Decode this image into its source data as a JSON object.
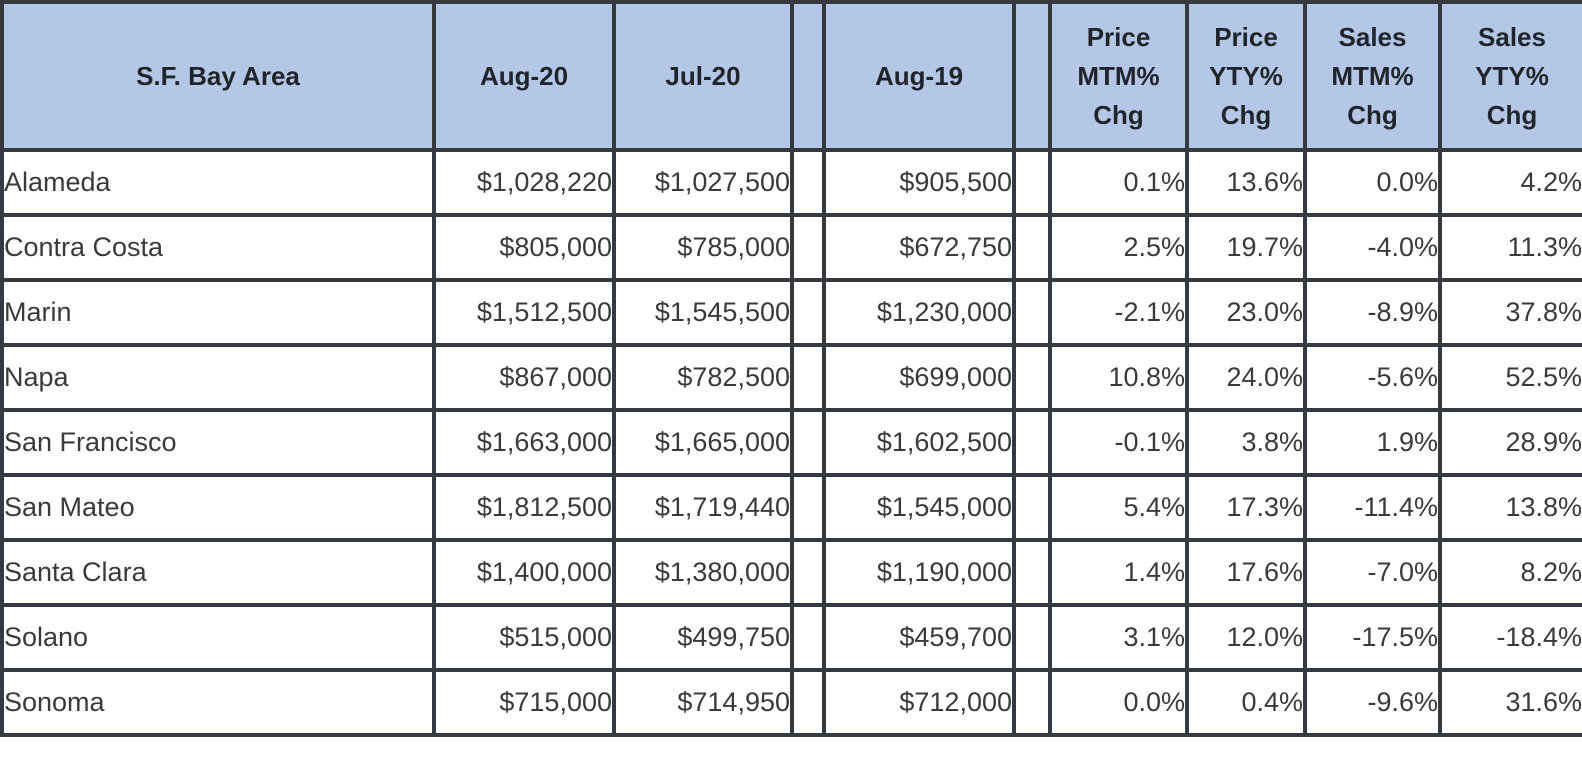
{
  "colors": {
    "header_bg": "#B4C7E7",
    "border": "#343A40",
    "body_text": "#3A3A3A",
    "header_text": "#20242B"
  },
  "table": {
    "columns": [
      {
        "key": "county",
        "label": "S.F. Bay Area"
      },
      {
        "key": "aug20",
        "label": "Aug-20"
      },
      {
        "key": "jul20",
        "label": "Jul-20"
      },
      {
        "key": "spacer1",
        "label": ""
      },
      {
        "key": "aug19",
        "label": "Aug-19"
      },
      {
        "key": "spacer2",
        "label": ""
      },
      {
        "key": "price_mtm",
        "label": "Price\nMTM%\nChg"
      },
      {
        "key": "price_yty",
        "label": "Price\nYTY%\nChg"
      },
      {
        "key": "sales_mtm",
        "label": "Sales\nMTM%\nChg"
      },
      {
        "key": "sales_yty",
        "label": "Sales\nYTY%\nChg"
      }
    ],
    "rows": [
      [
        "Alameda",
        "$1,028,220",
        "$1,027,500",
        "",
        "$905,500",
        "",
        "0.1%",
        "13.6%",
        "0.0%",
        "4.2%"
      ],
      [
        "Contra Costa",
        "$805,000",
        "$785,000",
        "",
        "$672,750",
        "",
        "2.5%",
        "19.7%",
        "-4.0%",
        "11.3%"
      ],
      [
        "Marin",
        "$1,512,500",
        "$1,545,500",
        "",
        "$1,230,000",
        "",
        "-2.1%",
        "23.0%",
        "-8.9%",
        "37.8%"
      ],
      [
        "Napa",
        "$867,000",
        "$782,500",
        "",
        "$699,000",
        "",
        "10.8%",
        "24.0%",
        "-5.6%",
        "52.5%"
      ],
      [
        "San Francisco",
        "$1,663,000",
        "$1,665,000",
        "",
        "$1,602,500",
        "",
        "-0.1%",
        "3.8%",
        "1.9%",
        "28.9%"
      ],
      [
        "San Mateo",
        "$1,812,500",
        "$1,719,440",
        "",
        "$1,545,000",
        "",
        "5.4%",
        "17.3%",
        "-11.4%",
        "13.8%"
      ],
      [
        "Santa Clara",
        "$1,400,000",
        "$1,380,000",
        "",
        "$1,190,000",
        "",
        "1.4%",
        "17.6%",
        "-7.0%",
        "8.2%"
      ],
      [
        "Solano",
        "$515,000",
        "$499,750",
        "",
        "$459,700",
        "",
        "3.1%",
        "12.0%",
        "-17.5%",
        "-18.4%"
      ],
      [
        "Sonoma",
        "$715,000",
        "$714,950",
        "",
        "$712,000",
        "",
        "0.0%",
        "0.4%",
        "-9.6%",
        "31.6%"
      ]
    ]
  },
  "chart_data": {
    "type": "table",
    "title": "S.F. Bay Area",
    "columns": [
      "S.F. Bay Area",
      "Aug-20",
      "Jul-20",
      "Aug-19",
      "Price MTM% Chg",
      "Price YTY% Chg",
      "Sales MTM% Chg",
      "Sales YTY% Chg"
    ],
    "rows": [
      [
        "Alameda",
        "$1,028,220",
        "$1,027,500",
        "$905,500",
        "0.1%",
        "13.6%",
        "0.0%",
        "4.2%"
      ],
      [
        "Contra Costa",
        "$805,000",
        "$785,000",
        "$672,750",
        "2.5%",
        "19.7%",
        "-4.0%",
        "11.3%"
      ],
      [
        "Marin",
        "$1,512,500",
        "$1,545,500",
        "$1,230,000",
        "-2.1%",
        "23.0%",
        "-8.9%",
        "37.8%"
      ],
      [
        "Napa",
        "$867,000",
        "$782,500",
        "$699,000",
        "10.8%",
        "24.0%",
        "-5.6%",
        "52.5%"
      ],
      [
        "San Francisco",
        "$1,663,000",
        "$1,665,000",
        "$1,602,500",
        "-0.1%",
        "3.8%",
        "1.9%",
        "28.9%"
      ],
      [
        "San Mateo",
        "$1,812,500",
        "$1,719,440",
        "$1,545,000",
        "5.4%",
        "17.3%",
        "-11.4%",
        "13.8%"
      ],
      [
        "Santa Clara",
        "$1,400,000",
        "$1,380,000",
        "$1,190,000",
        "1.4%",
        "17.6%",
        "-7.0%",
        "8.2%"
      ],
      [
        "Solano",
        "$515,000",
        "$499,750",
        "$459,700",
        "3.1%",
        "12.0%",
        "-17.5%",
        "-18.4%"
      ],
      [
        "Sonoma",
        "$715,000",
        "$714,950",
        "$712,000",
        "0.0%",
        "0.4%",
        "-9.6%",
        "31.6%"
      ]
    ]
  }
}
